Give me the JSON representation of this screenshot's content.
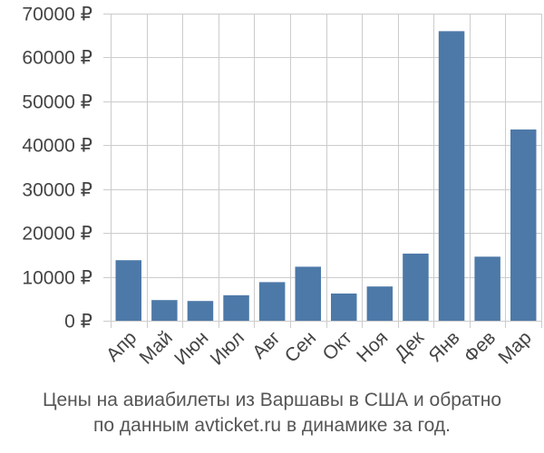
{
  "chart_data": {
    "type": "bar",
    "categories": [
      "Апр",
      "Май",
      "Июн",
      "Июл",
      "Авг",
      "Сен",
      "Окт",
      "Ноя",
      "Дек",
      "Янв",
      "Фев",
      "Мар"
    ],
    "values": [
      13800,
      4700,
      4500,
      5800,
      8800,
      12300,
      6200,
      7800,
      15300,
      66000,
      14600,
      43600
    ],
    "ylim": [
      0,
      70000
    ],
    "yticks": [
      0,
      10000,
      20000,
      30000,
      40000,
      50000,
      60000,
      70000
    ],
    "ytick_labels": [
      "0 ₽",
      "10000 ₽",
      "20000 ₽",
      "30000 ₽",
      "40000 ₽",
      "50000 ₽",
      "60000 ₽",
      "70000 ₽"
    ],
    "grid": true,
    "bar_color": "#4d79a8",
    "grid_color": "#cccccc"
  },
  "caption": {
    "line1": "Цены на авиабилеты из Варшавы в США и обратно",
    "line2": "по данным avticket.ru в динамике за год."
  }
}
